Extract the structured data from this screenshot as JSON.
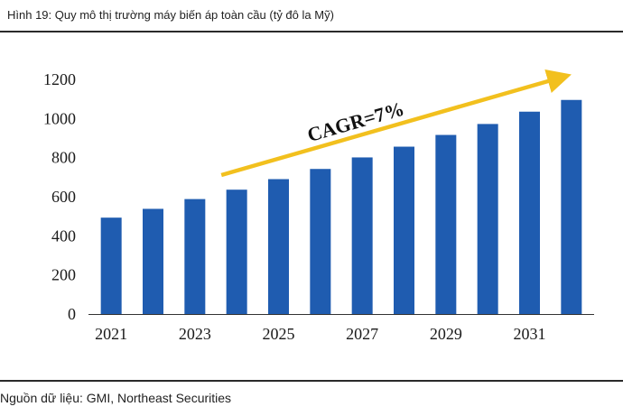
{
  "caption": "Hình 19: Quy mô thị trường máy biến áp toàn cầu (tỷ đô la Mỹ)",
  "source": "Nguồn dữ liệu: GMI, Northeast Securities",
  "colors": {
    "bar": "#1f5cb0",
    "arrow": "#f2c01e",
    "axis": "#333333"
  },
  "chart_data": {
    "type": "bar",
    "title": "Hình 19: Quy mô thị trường máy biến áp toàn cầu (tỷ đô la Mỹ)",
    "xlabel": "",
    "ylabel": "",
    "categories": [
      "2021",
      "2022",
      "2023",
      "2024",
      "2025",
      "2026",
      "2027",
      "2028",
      "2029",
      "2030",
      "2031",
      "2032"
    ],
    "x_tick_labels": [
      "2021",
      "2023",
      "2025",
      "2027",
      "2029",
      "2031"
    ],
    "values": [
      493,
      538,
      588,
      636,
      690,
      742,
      801,
      856,
      916,
      972,
      1035,
      1095
    ],
    "ylim": [
      0,
      1200
    ],
    "y_ticks": [
      0,
      200,
      400,
      600,
      800,
      1000,
      1200
    ],
    "grid": false,
    "legend": "none",
    "annotations": [
      {
        "text": "CAGR=7%",
        "kind": "trend-arrow",
        "from_category": "2024",
        "to_category": "2032"
      }
    ]
  }
}
